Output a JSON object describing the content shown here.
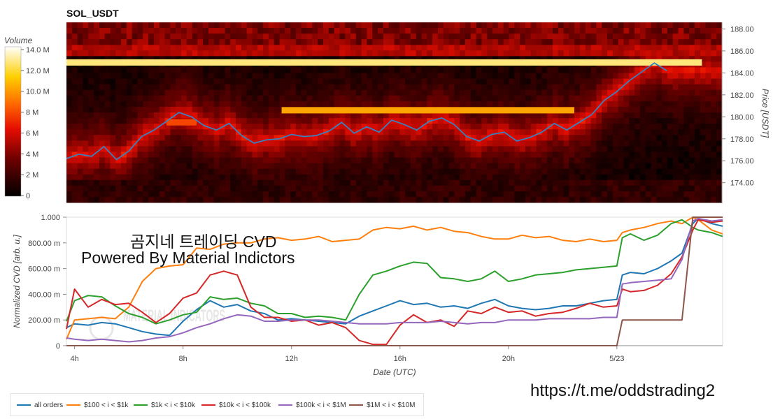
{
  "header": {
    "title": "SOL_USDT"
  },
  "colors": {
    "price_line": "#3a7fc0",
    "series": [
      "#1f77b4",
      "#ff7f0e",
      "#2ca02c",
      "#d62728",
      "#9467bd",
      "#8c564b"
    ]
  },
  "overlay": {
    "title": "곰지네 트레이딩 CVD",
    "subtitle": "Powered By Material Indictors",
    "url": "https://t.me/oddstrading2",
    "watermark": "MATERIAL INDICATORS"
  },
  "chart_data": [
    {
      "type": "heatmap",
      "title": "SOL_USDT",
      "ylabel": "Price [USDT]",
      "y_ticks": [
        "188.00",
        "186.00",
        "184.00",
        "182.00",
        "180.00",
        "178.00",
        "176.00",
        "174.00"
      ],
      "ylim": [
        172.2,
        188.6
      ],
      "colorbar": {
        "label": "Volume",
        "ticks": [
          "14.0 M",
          "12.0 M",
          "10.0 M",
          "8 M",
          "6 M",
          "4 M",
          "2 M",
          "0"
        ],
        "range": [
          0,
          14.5
        ]
      },
      "walls": [
        {
          "price": 184.95,
          "from_h": 0,
          "to_h": 25.4,
          "volume": 13.0
        },
        {
          "price": 180.6,
          "from_h": 8.6,
          "to_h": 20.3,
          "volume": 10.5
        },
        {
          "price": 179.5,
          "from_h": 4.0,
          "to_h": 5.2,
          "volume": 8.0
        }
      ],
      "price_series": {
        "name": "Price",
        "x": [
          0,
          0.5,
          1,
          1.5,
          2,
          2.5,
          3,
          3.5,
          4,
          4.5,
          5,
          5.5,
          6,
          6.5,
          7,
          7.5,
          8,
          8.5,
          9,
          9.5,
          10,
          10.5,
          11,
          11.5,
          12,
          12.5,
          13,
          13.5,
          14,
          14.5,
          15,
          15.5,
          16,
          16.5,
          17,
          17.5,
          18,
          18.5,
          19,
          19.5,
          20,
          20.5,
          21,
          21.5,
          22,
          22.5,
          23,
          23.5,
          24
        ],
        "values": [
          176.2,
          176.6,
          176.4,
          177.3,
          176.1,
          176.9,
          178.2,
          178.8,
          179.6,
          180.4,
          180.0,
          179.2,
          178.8,
          179.4,
          178.3,
          177.6,
          177.9,
          178.0,
          178.4,
          178.2,
          178.3,
          178.7,
          179.5,
          178.5,
          179.1,
          178.6,
          179.7,
          179.3,
          178.8,
          179.6,
          179.9,
          179.3,
          178.2,
          177.8,
          178.4,
          178.6,
          177.8,
          178.1,
          178.6,
          179.4,
          178.8,
          179.5,
          180.2,
          181.5,
          182.3,
          183.3,
          184.1,
          184.9,
          184.2
        ]
      }
    },
    {
      "type": "line",
      "xlabel": "Date (UTC)",
      "ylabel": "Normalized CVD [arb. u.]",
      "ylim": [
        0,
        1
      ],
      "y_ticks": [
        "1.000",
        "800.00 m",
        "600.00 m",
        "400.00 m",
        "200.00 m",
        "0"
      ],
      "x_ticks": [
        "4h",
        "8h",
        "12h",
        "16h",
        "20h",
        "5/23"
      ],
      "x_tick_hours": [
        4,
        8,
        12,
        16,
        20,
        24
      ],
      "xlim_hours": [
        3.7,
        27.9
      ],
      "x": [
        3.7,
        4.0,
        4.5,
        5.0,
        5.5,
        6.0,
        6.5,
        7.0,
        7.5,
        8.0,
        8.5,
        9.0,
        9.5,
        10.0,
        10.5,
        11.0,
        11.5,
        12.0,
        12.5,
        13.0,
        13.5,
        14.0,
        14.5,
        15.0,
        15.5,
        16.0,
        16.5,
        17.0,
        17.5,
        18.0,
        18.5,
        19.0,
        19.5,
        20.0,
        20.5,
        21.0,
        21.5,
        22.0,
        22.5,
        23.0,
        23.5,
        24.0,
        24.2,
        24.5,
        25.0,
        25.5,
        26.0,
        26.4,
        26.8,
        27.0,
        27.5,
        27.9
      ],
      "series": [
        {
          "name": "all orders",
          "values": [
            0.14,
            0.17,
            0.16,
            0.18,
            0.17,
            0.14,
            0.11,
            0.09,
            0.08,
            0.19,
            0.28,
            0.35,
            0.3,
            0.32,
            0.27,
            0.25,
            0.2,
            0.21,
            0.2,
            0.19,
            0.18,
            0.17,
            0.23,
            0.27,
            0.31,
            0.35,
            0.32,
            0.33,
            0.3,
            0.31,
            0.29,
            0.33,
            0.36,
            0.31,
            0.29,
            0.28,
            0.29,
            0.31,
            0.31,
            0.33,
            0.35,
            0.36,
            0.55,
            0.57,
            0.56,
            0.6,
            0.66,
            0.72,
            0.95,
            0.99,
            0.95,
            0.93
          ]
        },
        {
          "name": "$100 < i < $1k",
          "values": [
            0.05,
            0.2,
            0.21,
            0.22,
            0.21,
            0.3,
            0.5,
            0.6,
            0.62,
            0.63,
            0.76,
            0.75,
            0.79,
            0.8,
            0.8,
            0.83,
            0.84,
            0.82,
            0.83,
            0.85,
            0.81,
            0.82,
            0.83,
            0.9,
            0.92,
            0.91,
            0.93,
            0.9,
            0.92,
            0.89,
            0.88,
            0.85,
            0.83,
            0.83,
            0.86,
            0.84,
            0.85,
            0.82,
            0.81,
            0.83,
            0.81,
            0.82,
            0.88,
            0.9,
            0.92,
            0.95,
            0.97,
            0.95,
            1.0,
            0.98,
            0.9,
            0.87
          ]
        },
        {
          "name": "$1k < i < $10k",
          "values": [
            0.19,
            0.35,
            0.39,
            0.38,
            0.31,
            0.25,
            0.22,
            0.17,
            0.2,
            0.24,
            0.26,
            0.38,
            0.36,
            0.37,
            0.33,
            0.31,
            0.25,
            0.25,
            0.22,
            0.23,
            0.22,
            0.2,
            0.4,
            0.55,
            0.58,
            0.62,
            0.65,
            0.64,
            0.53,
            0.52,
            0.5,
            0.52,
            0.58,
            0.5,
            0.52,
            0.55,
            0.56,
            0.57,
            0.59,
            0.6,
            0.61,
            0.62,
            0.84,
            0.87,
            0.82,
            0.86,
            0.95,
            0.98,
            0.92,
            0.9,
            0.88,
            0.85
          ]
        },
        {
          "name": "$10k < i < $100k",
          "values": [
            0.13,
            0.44,
            0.3,
            0.36,
            0.32,
            0.33,
            0.26,
            0.18,
            0.25,
            0.37,
            0.41,
            0.55,
            0.58,
            0.55,
            0.3,
            0.22,
            0.22,
            0.19,
            0.2,
            0.16,
            0.18,
            0.14,
            0.04,
            0.01,
            0.01,
            0.16,
            0.24,
            0.18,
            0.2,
            0.15,
            0.27,
            0.25,
            0.3,
            0.26,
            0.27,
            0.23,
            0.25,
            0.26,
            0.29,
            0.33,
            0.3,
            0.31,
            0.44,
            0.42,
            0.43,
            0.47,
            0.56,
            0.69,
            0.9,
            0.98,
            0.96,
            0.97
          ]
        },
        {
          "name": "$100k < i < $1M",
          "values": [
            0.06,
            0.05,
            0.04,
            0.05,
            0.04,
            0.03,
            0.04,
            0.06,
            0.07,
            0.1,
            0.14,
            0.17,
            0.21,
            0.24,
            0.23,
            0.19,
            0.19,
            0.2,
            0.2,
            0.2,
            0.19,
            0.18,
            0.17,
            0.17,
            0.17,
            0.18,
            0.18,
            0.18,
            0.19,
            0.18,
            0.17,
            0.18,
            0.18,
            0.2,
            0.2,
            0.2,
            0.21,
            0.21,
            0.21,
            0.21,
            0.22,
            0.22,
            0.48,
            0.49,
            0.5,
            0.51,
            0.52,
            0.67,
            0.97,
            0.99,
            0.97,
            0.98
          ]
        },
        {
          "name": "$1M < i < $10M",
          "values": [
            0.0,
            0.0,
            0.0,
            0.0,
            0.0,
            0.0,
            0.0,
            0.0,
            0.0,
            0.0,
            0.0,
            0.0,
            0.0,
            0.0,
            0.0,
            0.0,
            0.0,
            0.0,
            0.0,
            0.0,
            0.0,
            0.0,
            0.0,
            0.0,
            0.0,
            0.0,
            0.0,
            0.0,
            0.0,
            0.0,
            0.0,
            0.0,
            0.0,
            0.0,
            0.0,
            0.0,
            0.0,
            0.0,
            0.0,
            0.0,
            0.0,
            0.0,
            0.2,
            0.2,
            0.2,
            0.2,
            0.2,
            0.2,
            1.0,
            1.0,
            1.0,
            1.0
          ]
        }
      ],
      "legend": {
        "position": "bottom-left"
      }
    }
  ]
}
